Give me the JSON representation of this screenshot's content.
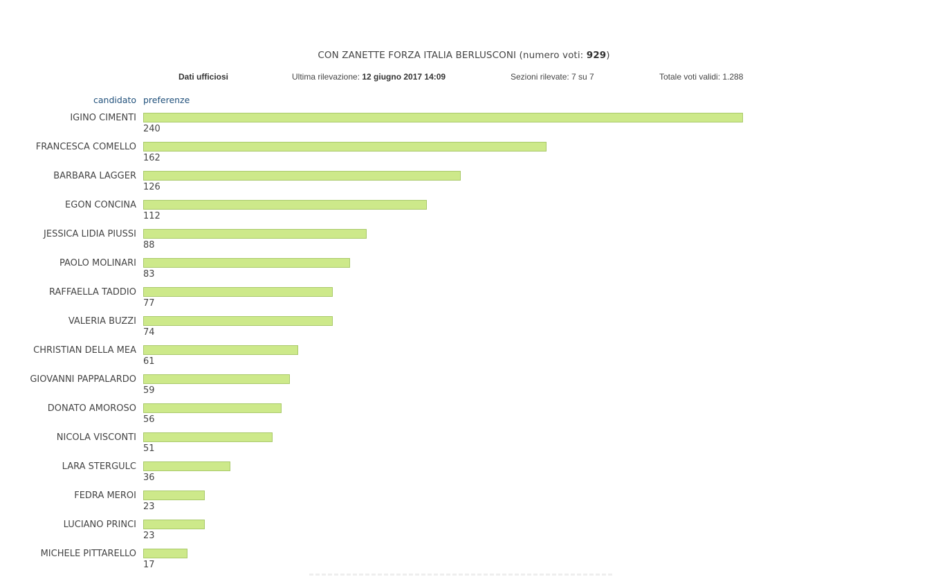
{
  "header": {
    "list_name": "CON ZANETTE FORZA ITALIA BERLUSCONI",
    "votes_prefix": "(numero voti: ",
    "votes_value": "929",
    "votes_suffix": ")"
  },
  "meta": {
    "status": "Dati ufficiosi",
    "last_update_label": "Ultima rilevazione: ",
    "last_update_value": "12 giugno 2017 14:09",
    "sections": "Sezioni rilevate: 7 su 7",
    "total_valid": "Totale voti validi: 1.288"
  },
  "columns": {
    "candidate": "candidato",
    "preferences": "preferenze"
  },
  "colors": {
    "bar_fill": "#cde98a",
    "bar_border": "#a9c96a",
    "column_header": "#1f4f7a"
  },
  "chart_data": {
    "type": "bar",
    "orientation": "horizontal",
    "title": "CON ZANETTE FORZA ITALIA BERLUSCONI (numero voti: 929)",
    "xlabel": "preferenze",
    "ylabel": "candidato",
    "grid": false,
    "legend": "none",
    "categories": [
      "IGINO CIMENTI",
      "FRANCESCA COMELLO",
      "BARBARA LAGGER",
      "EGON CONCINA",
      "JESSICA LIDIA PIUSSI",
      "PAOLO MOLINARI",
      "RAFFAELLA TADDIO",
      "VALERIA BUZZI",
      "CHRISTIAN DELLA MEA",
      "GIOVANNI PAPPALARDO",
      "DONATO AMOROSO",
      "NICOLA VISCONTI",
      "LARA STERGULC",
      "FEDRA MEROI",
      "LUCIANO PRINCI",
      "MICHELE PITTARELLO"
    ],
    "values": [
      240,
      162,
      126,
      112,
      88,
      83,
      77,
      74,
      61,
      59,
      56,
      51,
      36,
      23,
      23,
      17
    ],
    "value_labels": [
      "240",
      "162",
      "126",
      "112",
      "88",
      "83",
      "77",
      "74",
      "61",
      "59",
      "56",
      "51",
      "36",
      "23",
      "23",
      "17"
    ],
    "bar_fill_percent": [
      100,
      67.2,
      52.9,
      47.3,
      37.3,
      34.5,
      31.6,
      31.6,
      25.8,
      24.5,
      23.1,
      21.6,
      14.5,
      10.3,
      10.3,
      7.4
    ],
    "xlim": [
      0,
      240
    ]
  }
}
